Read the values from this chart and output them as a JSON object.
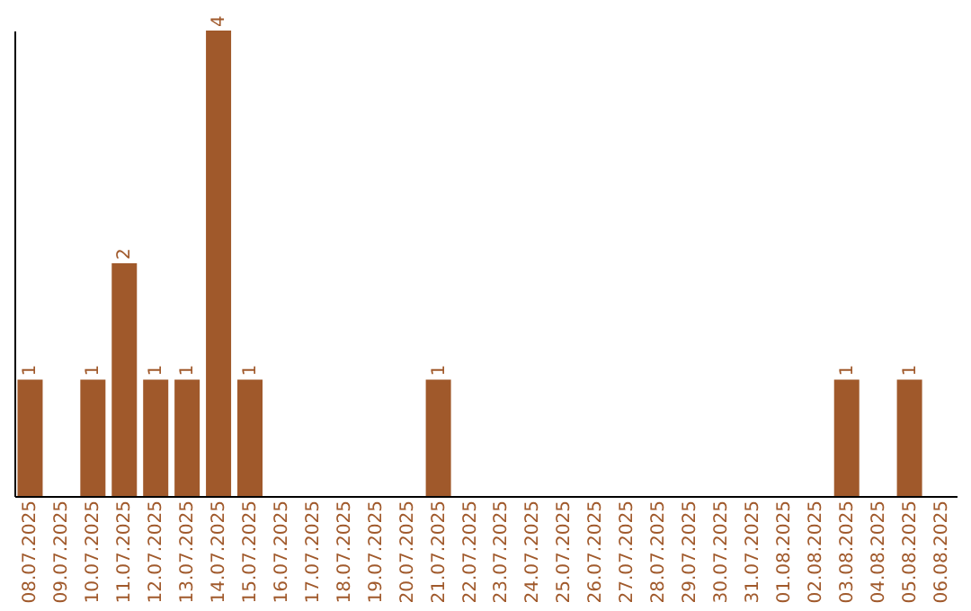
{
  "chart_data": {
    "type": "bar",
    "categories": [
      "08.07.2025",
      "09.07.2025",
      "10.07.2025",
      "11.07.2025",
      "12.07.2025",
      "13.07.2025",
      "14.07.2025",
      "15.07.2025",
      "16.07.2025",
      "17.07.2025",
      "18.07.2025",
      "19.07.2025",
      "20.07.2025",
      "21.07.2025",
      "22.07.2025",
      "23.07.2025",
      "24.07.2025",
      "25.07.2025",
      "26.07.2025",
      "27.07.2025",
      "28.07.2025",
      "29.07.2025",
      "30.07.2025",
      "31.07.2025",
      "01.08.2025",
      "02.08.2025",
      "03.08.2025",
      "04.08.2025",
      "05.08.2025",
      "06.08.2025"
    ],
    "values": [
      1,
      0,
      1,
      2,
      1,
      1,
      4,
      1,
      0,
      0,
      0,
      0,
      0,
      1,
      0,
      0,
      0,
      0,
      0,
      0,
      0,
      0,
      0,
      0,
      0,
      0,
      1,
      0,
      1,
      0
    ],
    "value_labels": [
      "1",
      null,
      "1",
      "2",
      "1",
      "1",
      "4",
      "1",
      null,
      null,
      null,
      null,
      null,
      "1",
      null,
      null,
      null,
      null,
      null,
      null,
      null,
      null,
      null,
      null,
      null,
      null,
      "1",
      null,
      "1",
      null
    ],
    "color": "#a0592b",
    "tick_labels": "x",
    "grid": false
  }
}
